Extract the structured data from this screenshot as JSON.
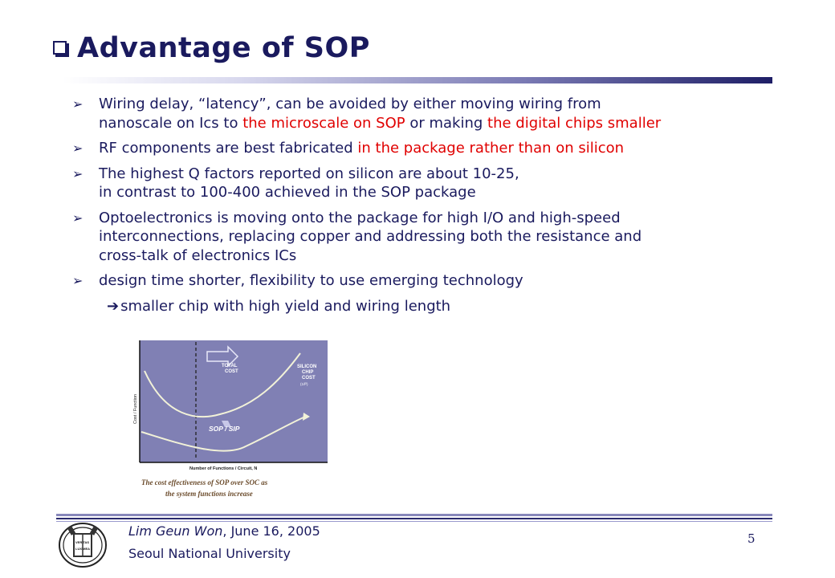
{
  "slide": {
    "title": "Advantage of SOP",
    "title_icon": "checkbox-square-icon"
  },
  "bullets": [
    {
      "icon": "arrowhead-icon",
      "lines": [
        [
          {
            "t": "Wiring delay, “latency”, can be avoided by either moving wiring from",
            "red": false
          }
        ],
        [
          {
            "t": "nanoscale on Ics to ",
            "red": false
          },
          {
            "t": "the microscale on SOP",
            "red": true
          },
          {
            "t": " or making ",
            "red": false
          },
          {
            "t": "the digital chips smaller",
            "red": true
          }
        ]
      ]
    },
    {
      "icon": "arrowhead-icon",
      "lines": [
        [
          {
            "t": "RF components are best fabricated ",
            "red": false
          },
          {
            "t": "in the package rather than on silicon",
            "red": true
          }
        ]
      ]
    },
    {
      "icon": "arrowhead-icon",
      "lines": [
        [
          {
            "t": "The highest Q factors reported on silicon are about 10-25,",
            "red": false
          }
        ],
        [
          {
            "t": "in contrast to 100-400 achieved in the SOP package",
            "red": false
          }
        ]
      ]
    },
    {
      "icon": "arrowhead-icon",
      "lines": [
        [
          {
            "t": "Optoelectronics is moving onto the package for high I/O and high-speed",
            "red": false
          }
        ],
        [
          {
            "t": "interconnections, replacing copper and addressing both the resistance and",
            "red": false
          }
        ],
        [
          {
            "t": "cross-talk of electronics ICs",
            "red": false
          }
        ]
      ]
    },
    {
      "icon": "arrowhead-icon",
      "lines": [
        [
          {
            "t": "design time shorter, flexibility to use emerging technology",
            "red": false
          }
        ]
      ]
    }
  ],
  "sub_point": {
    "icon": "right-arrow-icon",
    "text": "smaller chip with high yield and wiring length"
  },
  "figure": {
    "total_cost_label": [
      "TOTAL",
      "COST"
    ],
    "silicon_label": [
      "SILICON",
      "CHIP",
      "COST"
    ],
    "silicon_small": "(1/f²)",
    "y_axis_label": "Cost / Function",
    "x_axis_label": "Number of Functions / Circuit, N",
    "sop_label": "SOP / SIP",
    "caption": [
      "The cost effectiveness of SOP over SOC as",
      "the system functions increase"
    ],
    "colors": {
      "panel": "#8080b4",
      "curve": "#f2f2d8",
      "caption": "#6a4a2a"
    }
  },
  "footer": {
    "author": "Lim Geun Won",
    "date": ", June 16, 2005",
    "university": "Seoul National University",
    "page_number": "5",
    "logo_text": [
      "VERITAS",
      "LUX MEA"
    ]
  },
  "colors": {
    "text": "#1a1a5e",
    "highlight": "#e00000"
  }
}
